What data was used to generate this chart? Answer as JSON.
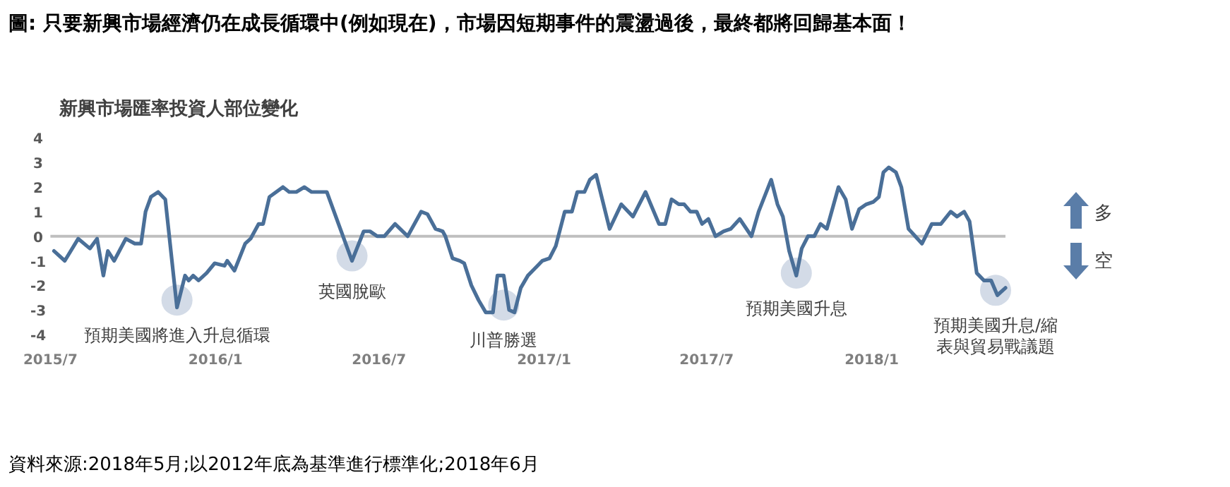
{
  "chart_data": {
    "type": "line",
    "title": "圖: 只要新興市場經濟仍在成長循環中(例如現在)，市場因短期事件的震盪過後，最終都將回歸基本面！",
    "subtitle": "新興市場匯率投資人部位變化",
    "x": [
      "2015-07-05",
      "2015-07-17",
      "2015-08-01",
      "2015-08-14",
      "2015-08-22",
      "2015-08-29",
      "2015-09-03",
      "2015-09-10",
      "2015-09-23",
      "2015-10-03",
      "2015-10-10",
      "2015-10-15",
      "2015-10-21",
      "2015-10-29",
      "2015-11-06",
      "2015-11-19",
      "2015-11-28",
      "2015-12-02",
      "2015-12-07",
      "2015-12-13",
      "2015-12-22",
      "2015-12-31",
      "2016-01-11",
      "2016-01-14",
      "2016-01-22",
      "2016-02-03",
      "2016-02-09",
      "2016-02-18",
      "2016-02-23",
      "2016-03-01",
      "2016-03-16",
      "2016-03-23",
      "2016-03-31",
      "2016-04-09",
      "2016-04-17",
      "2016-05-04",
      "2016-06-01",
      "2016-06-14",
      "2016-06-21",
      "2016-06-29",
      "2016-07-07",
      "2016-07-19",
      "2016-08-02",
      "2016-08-17",
      "2016-08-24",
      "2016-09-02",
      "2016-09-10",
      "2016-09-13",
      "2016-09-21",
      "2016-09-29",
      "2016-10-04",
      "2016-10-12",
      "2016-10-20",
      "2016-10-28",
      "2016-11-05",
      "2016-11-10",
      "2016-11-17",
      "2016-11-23",
      "2016-11-29",
      "2016-12-06",
      "2016-12-14",
      "2016-12-22",
      "2016-12-30",
      "2017-01-07",
      "2017-01-14",
      "2017-01-24",
      "2017-02-01",
      "2017-02-07",
      "2017-02-15",
      "2017-02-21",
      "2017-02-28",
      "2017-03-15",
      "2017-03-28",
      "2017-04-10",
      "2017-04-24",
      "2017-05-09",
      "2017-05-16",
      "2017-05-23",
      "2017-05-31",
      "2017-06-06",
      "2017-06-13",
      "2017-06-20",
      "2017-06-26",
      "2017-07-03",
      "2017-07-11",
      "2017-07-20",
      "2017-07-28",
      "2017-08-07",
      "2017-08-20",
      "2017-08-28",
      "2017-09-11",
      "2017-09-18",
      "2017-09-24",
      "2017-10-01",
      "2017-10-09",
      "2017-10-15",
      "2017-10-22",
      "2017-10-29",
      "2017-11-05",
      "2017-11-12",
      "2017-11-25",
      "2017-12-03",
      "2017-12-10",
      "2017-12-18",
      "2017-12-26",
      "2018-01-03",
      "2018-01-09",
      "2018-01-14",
      "2018-01-20",
      "2018-01-28",
      "2018-02-03",
      "2018-02-11",
      "2018-02-26",
      "2018-03-09",
      "2018-03-19",
      "2018-03-30",
      "2018-04-06",
      "2018-04-14",
      "2018-04-20",
      "2018-04-28",
      "2018-05-06",
      "2018-05-14",
      "2018-05-21",
      "2018-05-30"
    ],
    "series": [
      {
        "color": "#4a6f98",
        "values": [
          -0.6,
          -1.0,
          -0.1,
          -0.5,
          -0.1,
          -1.6,
          -0.6,
          -1.0,
          -0.1,
          -0.3,
          -0.3,
          1.0,
          1.6,
          1.8,
          1.5,
          -2.9,
          -1.6,
          -1.8,
          -1.6,
          -1.8,
          -1.5,
          -1.1,
          -1.2,
          -1.0,
          -1.4,
          -0.3,
          -0.1,
          0.5,
          0.5,
          1.6,
          2.0,
          1.8,
          1.8,
          2.0,
          1.8,
          1.8,
          -1.0,
          0.2,
          0.2,
          0.0,
          0.0,
          0.5,
          0.0,
          1.0,
          0.9,
          0.3,
          0.2,
          0.0,
          -0.9,
          -1.0,
          -1.1,
          -2.0,
          -2.6,
          -3.1,
          -3.1,
          -1.6,
          -1.6,
          -3.0,
          -3.1,
          -2.1,
          -1.6,
          -1.3,
          -1.0,
          -0.9,
          -0.4,
          1.0,
          1.0,
          1.8,
          1.8,
          2.3,
          2.5,
          0.3,
          1.3,
          0.8,
          1.8,
          0.5,
          0.5,
          1.5,
          1.3,
          1.3,
          1.0,
          1.0,
          0.5,
          0.7,
          0.0,
          0.2,
          0.3,
          0.7,
          0.0,
          1.0,
          2.3,
          1.3,
          0.8,
          -0.6,
          -1.6,
          -0.5,
          0.0,
          0.0,
          0.5,
          0.3,
          2.0,
          1.5,
          0.3,
          1.1,
          1.3,
          1.4,
          1.6,
          2.6,
          2.8,
          2.6,
          2.0,
          0.3,
          -0.3,
          0.5,
          0.5,
          1.0,
          0.8,
          1.0,
          0.6,
          -1.5,
          -1.8,
          -1.8,
          -2.4,
          -2.1
        ]
      }
    ],
    "xlim": [
      "2015-07-01",
      "2018-05-30"
    ],
    "ylim": [
      -4,
      4
    ],
    "xticks": [
      {
        "value": "2015-07-01",
        "label": "2015/7"
      },
      {
        "value": "2016-01-01",
        "label": "2016/1"
      },
      {
        "value": "2016-07-01",
        "label": "2016/7"
      },
      {
        "value": "2017-01-01",
        "label": "2017/1"
      },
      {
        "value": "2017-07-01",
        "label": "2017/7"
      },
      {
        "value": "2018-01-01",
        "label": "2018/1"
      }
    ],
    "yticks": [
      -4,
      -3,
      -2,
      -1,
      0,
      1,
      2,
      3,
      4
    ],
    "ref_lines": [
      {
        "axis": "y",
        "value": 0,
        "color": "#bfbfbf"
      }
    ],
    "annotations": [
      {
        "text": "預期美國將進入升息循環",
        "x": "2015-11-19",
        "y": -2.6
      },
      {
        "text": "英國脫歐",
        "x": "2016-06-01",
        "y": -0.8
      },
      {
        "text": "川普勝選",
        "x": "2016-11-17",
        "y": -2.8
      },
      {
        "text": "預期美國升息",
        "x": "2017-10-09",
        "y": -1.5
      },
      {
        "text": "預期美國升息/縮表與貿易戰議題",
        "x": "2018-05-19",
        "y": -2.2
      },
      "多",
      "空",
      "資料來源:2018年5月;以2012年底為基準進行標準化;2018年6月"
    ],
    "grid": false,
    "marker": "none",
    "line_style": "solid"
  }
}
